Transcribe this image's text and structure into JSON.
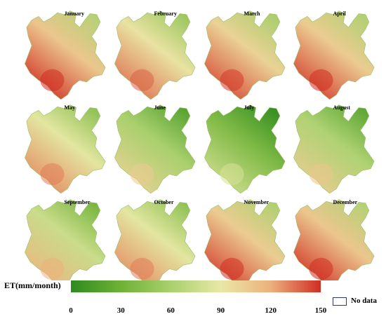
{
  "legend": {
    "title": "ET(mm/month)",
    "ticks": [
      "0",
      "30",
      "60",
      "90",
      "120",
      "150"
    ],
    "tick_values": [
      0,
      30,
      60,
      90,
      120,
      150
    ],
    "range": [
      0,
      150
    ],
    "colors": [
      "#2e8b1e",
      "#6fb137",
      "#a9d06d",
      "#e9e8a6",
      "#ecb07c",
      "#d02e22"
    ],
    "nodata_label": "No data"
  },
  "months": [
    {
      "name": "January",
      "tone": 0.72
    },
    {
      "name": "February",
      "tone": 0.62
    },
    {
      "name": "March",
      "tone": 0.68
    },
    {
      "name": "April",
      "tone": 0.7
    },
    {
      "name": "May",
      "tone": 0.58
    },
    {
      "name": "June",
      "tone": 0.4
    },
    {
      "name": "July",
      "tone": 0.25
    },
    {
      "name": "August",
      "tone": 0.42
    },
    {
      "name": "September",
      "tone": 0.5
    },
    {
      "name": "October",
      "tone": 0.58
    },
    {
      "name": "November",
      "tone": 0.7
    },
    {
      "name": "December",
      "tone": 0.72
    }
  ]
}
